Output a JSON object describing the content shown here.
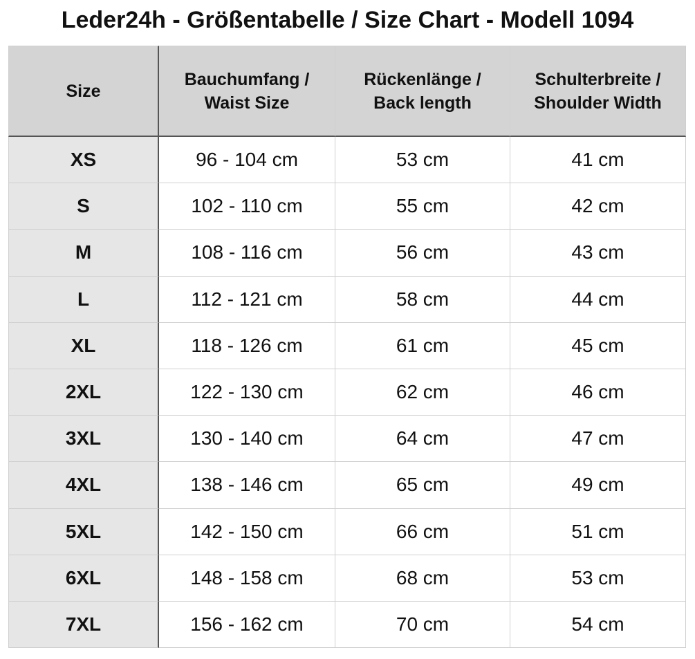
{
  "title": "Leder24h - Größentabelle / Size Chart - Modell 1094",
  "table": {
    "header": [
      [
        "Size"
      ],
      [
        "Bauchumfang /",
        "Waist Size"
      ],
      [
        "Rückenlänge /",
        "Back length"
      ],
      [
        "Schulterbreite /",
        "Shoulder Width"
      ]
    ],
    "rows": [
      [
        "XS",
        "96 - 104 cm",
        "53 cm",
        "41 cm"
      ],
      [
        "S",
        "102 - 110 cm",
        "55 cm",
        "42 cm"
      ],
      [
        "M",
        "108 - 116 cm",
        "56 cm",
        "43 cm"
      ],
      [
        "L",
        "112 - 121 cm",
        "58 cm",
        "44 cm"
      ],
      [
        "XL",
        "118 - 126 cm",
        "61 cm",
        "45 cm"
      ],
      [
        "2XL",
        "122 - 130 cm",
        "62 cm",
        "46 cm"
      ],
      [
        "3XL",
        "130 - 140 cm",
        "64 cm",
        "47 cm"
      ],
      [
        "4XL",
        "138 - 146 cm",
        "65 cm",
        "49 cm"
      ],
      [
        "5XL",
        "142 - 150 cm",
        "66 cm",
        "51 cm"
      ],
      [
        "6XL",
        "148 - 158 cm",
        "68 cm",
        "53 cm"
      ],
      [
        "7XL",
        "156 - 162 cm",
        "70 cm",
        "54 cm"
      ]
    ]
  }
}
